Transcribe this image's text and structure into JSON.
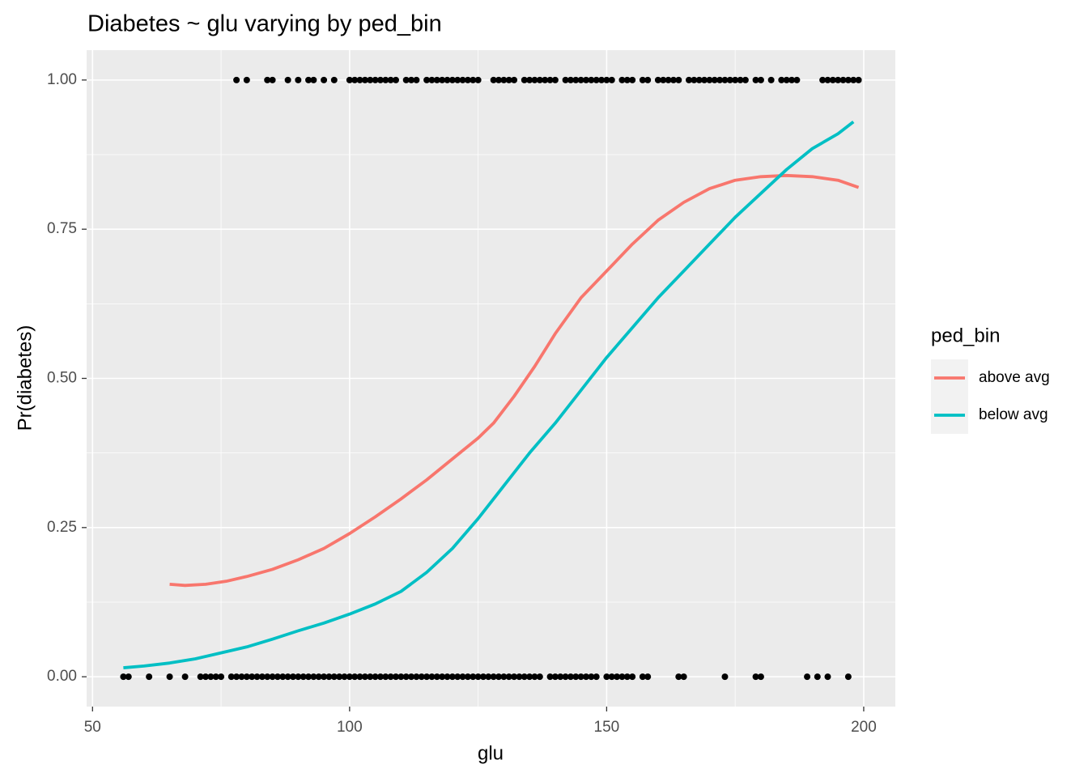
{
  "chart_data": {
    "type": "line",
    "title": "Diabetes ~ glu varying by ped_bin",
    "x_label": "glu",
    "y_label": "Pr(diabetes)",
    "legend_title": "ped_bin",
    "legend_position": "right",
    "xlim": [
      48.85,
      206.15
    ],
    "ylim": [
      -0.05,
      1.05
    ],
    "xticks": [
      50,
      100,
      150,
      200
    ],
    "yticks": [
      {
        "value": 0,
        "label": "0.00"
      },
      {
        "value": 0.25,
        "label": "0.25"
      },
      {
        "value": 0.5,
        "label": "0.50"
      },
      {
        "value": 0.75,
        "label": "0.75"
      },
      {
        "value": 1,
        "label": "1.00"
      }
    ],
    "x_minor_grid": [
      75,
      125,
      175
    ],
    "y_minor_grid": [
      0.125,
      0.375,
      0.625,
      0.875
    ],
    "grid": true,
    "series": [
      {
        "name": "above avg",
        "color": "#F8766D",
        "x": [
          65,
          68,
          72,
          76,
          80,
          85,
          90,
          95,
          100,
          105,
          110,
          115,
          120,
          125,
          128,
          132,
          136,
          140,
          145,
          150,
          155,
          160,
          165,
          170,
          175,
          180,
          185,
          190,
          195,
          199
        ],
        "values": [
          0.155,
          0.153,
          0.155,
          0.16,
          0.168,
          0.18,
          0.196,
          0.215,
          0.24,
          0.268,
          0.298,
          0.33,
          0.365,
          0.4,
          0.425,
          0.47,
          0.52,
          0.575,
          0.635,
          0.68,
          0.725,
          0.765,
          0.795,
          0.818,
          0.832,
          0.838,
          0.84,
          0.838,
          0.832,
          0.82
        ]
      },
      {
        "name": "below avg",
        "color": "#00BFC4",
        "x": [
          56,
          60,
          65,
          70,
          75,
          80,
          85,
          90,
          95,
          100,
          105,
          110,
          115,
          120,
          125,
          130,
          135,
          140,
          145,
          150,
          155,
          160,
          165,
          170,
          175,
          180,
          185,
          190,
          195,
          198
        ],
        "values": [
          0.015,
          0.018,
          0.023,
          0.03,
          0.04,
          0.05,
          0.063,
          0.077,
          0.09,
          0.105,
          0.122,
          0.143,
          0.175,
          0.215,
          0.265,
          0.32,
          0.375,
          0.425,
          0.48,
          0.535,
          0.585,
          0.635,
          0.68,
          0.725,
          0.77,
          0.81,
          0.85,
          0.885,
          0.91,
          0.93
        ]
      }
    ],
    "points": [
      {
        "y": 1,
        "color": "#000000",
        "x": [
          78,
          80,
          84,
          85,
          88,
          90,
          92,
          93,
          95,
          97,
          100,
          101,
          102,
          103,
          104,
          105,
          106,
          107,
          108,
          109,
          111,
          112,
          113,
          115,
          116,
          117,
          118,
          119,
          120,
          121,
          122,
          123,
          124,
          125,
          128,
          129,
          130,
          131,
          132,
          134,
          135,
          136,
          137,
          138,
          139,
          140,
          142,
          143,
          144,
          145,
          146,
          147,
          148,
          149,
          150,
          151,
          153,
          154,
          155,
          157,
          158,
          160,
          161,
          162,
          163,
          164,
          166,
          167,
          168,
          169,
          170,
          171,
          172,
          173,
          174,
          175,
          176,
          177,
          179,
          180,
          182,
          184,
          185,
          186,
          187,
          192,
          193,
          194,
          195,
          196,
          197,
          198,
          199
        ]
      },
      {
        "y": 0,
        "color": "#000000",
        "x": [
          56,
          57,
          61,
          65,
          68,
          71,
          72,
          73,
          74,
          75,
          77,
          78,
          79,
          80,
          81,
          82,
          83,
          84,
          85,
          86,
          87,
          88,
          89,
          90,
          91,
          92,
          93,
          94,
          95,
          96,
          97,
          98,
          99,
          100,
          101,
          102,
          103,
          104,
          105,
          106,
          107,
          108,
          109,
          110,
          111,
          112,
          113,
          114,
          115,
          116,
          117,
          118,
          119,
          120,
          121,
          122,
          123,
          124,
          125,
          126,
          127,
          128,
          129,
          130,
          131,
          132,
          133,
          134,
          135,
          136,
          137,
          139,
          140,
          141,
          142,
          143,
          144,
          145,
          146,
          147,
          148,
          150,
          151,
          152,
          153,
          154,
          155,
          157,
          158,
          164,
          165,
          173,
          179,
          180,
          189,
          191,
          193,
          197
        ]
      }
    ]
  }
}
